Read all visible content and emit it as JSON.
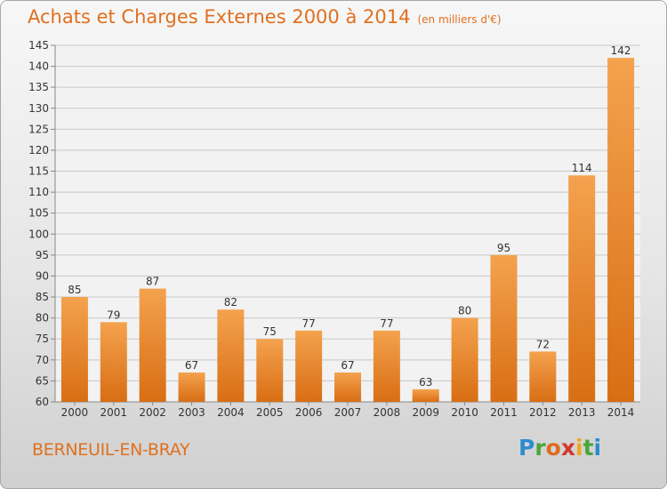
{
  "header": {
    "title": "Achats et Charges Externes 2000 à 2014",
    "unit": "(en milliers d'€)"
  },
  "footer": {
    "city": "BERNEUIL-EN-BRAY"
  },
  "logo": {
    "letters": [
      "P",
      "r",
      "o",
      "x",
      "i",
      "t",
      "i"
    ],
    "colors": [
      "#2d8ccf",
      "#4aa63a",
      "#e06b1f",
      "#d23a2a",
      "#f2a71b",
      "#4aa63a",
      "#2d8ccf"
    ]
  },
  "colors": {
    "bar_light": "#f4a24e",
    "bar_dark": "#d86e14",
    "title": "#e0701f"
  },
  "chart_data": {
    "type": "bar",
    "title": "Achats et Charges Externes 2000 à 2014",
    "categories": [
      "2000",
      "2001",
      "2002",
      "2003",
      "2004",
      "2005",
      "2006",
      "2007",
      "2008",
      "2009",
      "2010",
      "2011",
      "2012",
      "2013",
      "2014"
    ],
    "values": [
      85,
      79,
      87,
      67,
      82,
      75,
      77,
      67,
      77,
      63,
      80,
      95,
      72,
      114,
      142
    ],
    "ylim": [
      60,
      145
    ],
    "yticks": [
      60,
      65,
      70,
      75,
      80,
      85,
      90,
      95,
      100,
      105,
      110,
      115,
      120,
      125,
      130,
      135,
      140,
      145
    ],
    "grid": true,
    "xlabel": "",
    "ylabel": ""
  }
}
